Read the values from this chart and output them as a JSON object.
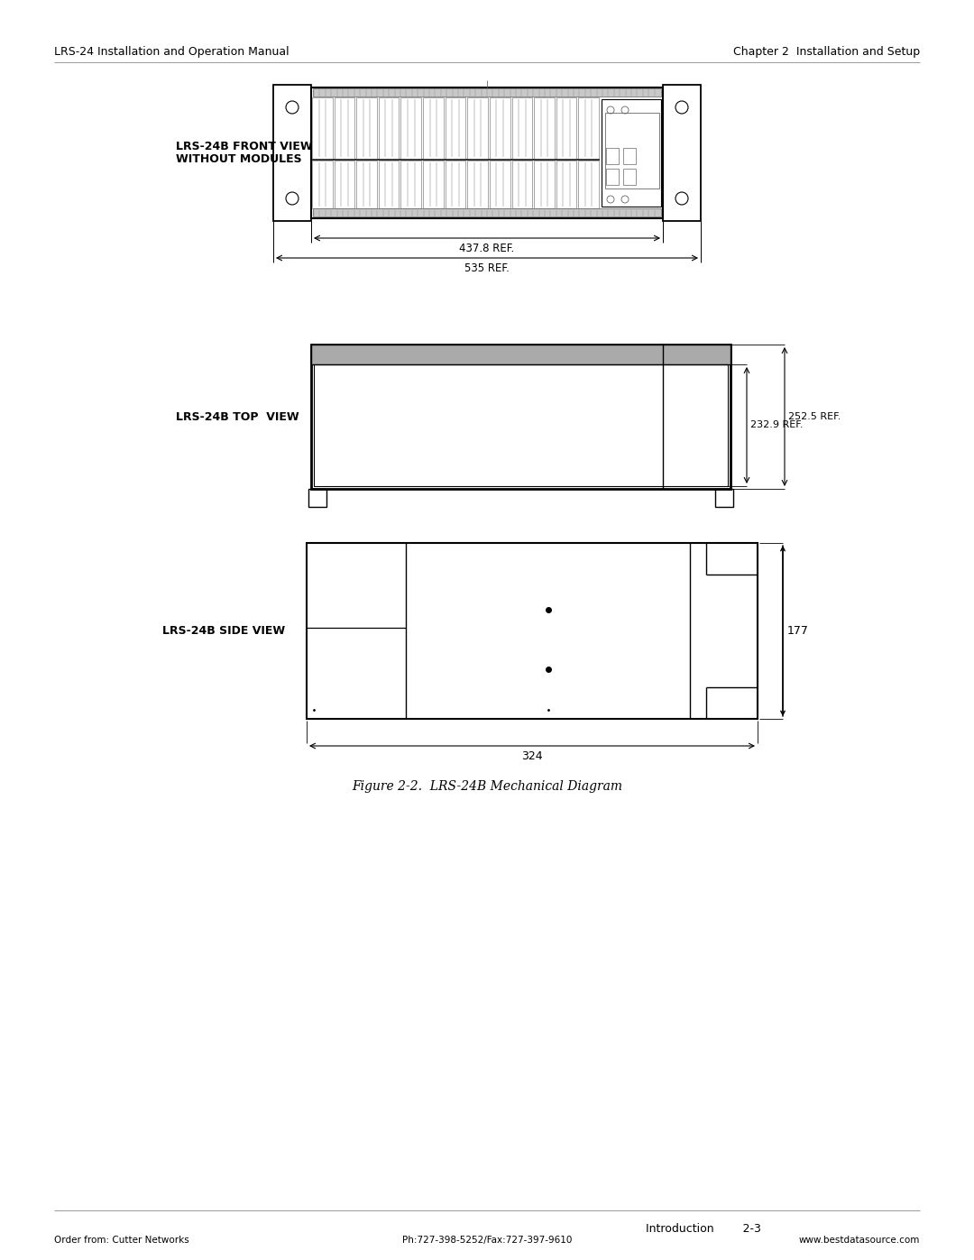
{
  "header_left": "LRS-24 Installation and Operation Manual",
  "header_right": "Chapter 2  Installation and Setup",
  "footer_center": "Introduction        2-3",
  "footer_left": "Order from: Cutter Networks",
  "footer_phone": "Ph:727-398-5252/Fax:727-397-9610",
  "footer_web": "www.bestdatasource.com",
  "figure_caption": "Figure 2-2.  LRS-24B Mechanical Diagram",
  "front_view_label": "LRS-24B FRONT VIEW\nWITHOUT MODULES",
  "top_view_label": "LRS-24B TOP  VIEW",
  "side_view_label": "LRS-24B SIDE VIEW",
  "dim_437": "437.8 REF.",
  "dim_535": "535 REF.",
  "dim_232": "232.9 REF.",
  "dim_252": "252.5 REF.",
  "dim_177": "177",
  "dim_324": "324",
  "line_color": "#000000",
  "bg_color": "#ffffff",
  "drawing_color": "#666666",
  "light_gray": "#cccccc",
  "med_gray": "#888888"
}
